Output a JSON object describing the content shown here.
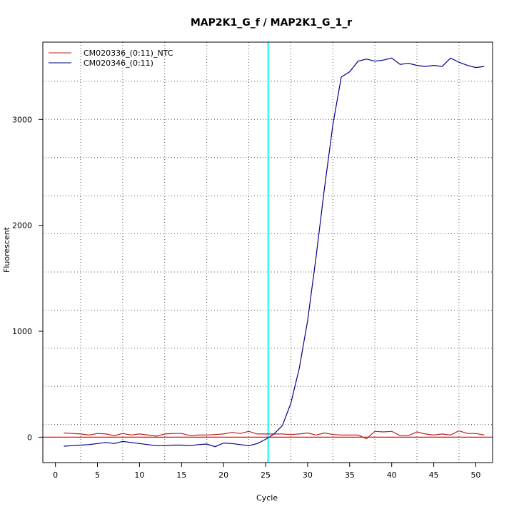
{
  "chart_data": {
    "type": "line",
    "title": "MAP2K1_G_f / MAP2K1_G_1_r",
    "xlabel": "Cycle",
    "ylabel": "Fluorescent",
    "xlim": [
      -1.5,
      52
    ],
    "ylim": [
      -240,
      3730
    ],
    "xticks": [
      0,
      5,
      10,
      15,
      20,
      25,
      30,
      35,
      40,
      45,
      50
    ],
    "yticks": [
      0,
      1000,
      2000,
      3000
    ],
    "x_grid": [
      3,
      8,
      13,
      18,
      23,
      25.3,
      28,
      33,
      38,
      43,
      48
    ],
    "y_grid": [
      0,
      120,
      480,
      840,
      1200,
      1560,
      1920,
      2280,
      2640,
      3000,
      3360
    ],
    "threshold_cycle": 25.3,
    "baseline": 0,
    "legend_position": "top-left",
    "colors": {
      "ntc": "#b22222",
      "sample": "#00008b",
      "threshold": "#00ffff",
      "baseline": "#ff0000"
    },
    "series": [
      {
        "name": "CM020336_(0:11)_NTC",
        "color": "#b22222",
        "values": [
          40,
          35,
          30,
          20,
          35,
          30,
          15,
          35,
          20,
          30,
          20,
          10,
          30,
          35,
          35,
          15,
          20,
          20,
          25,
          30,
          45,
          35,
          55,
          30,
          30,
          30,
          30,
          25,
          30,
          40,
          20,
          40,
          25,
          20,
          20,
          20,
          -15,
          55,
          50,
          55,
          15,
          15,
          50,
          30,
          20,
          30,
          20,
          60,
          35,
          35,
          20
        ]
      },
      {
        "name": "CM020346_(0:11)",
        "color": "#00008b",
        "values": [
          -85,
          -80,
          -75,
          -70,
          -60,
          -50,
          -60,
          -40,
          -50,
          -60,
          -70,
          -80,
          -80,
          -75,
          -75,
          -80,
          -70,
          -65,
          -90,
          -55,
          -60,
          -70,
          -80,
          -60,
          -20,
          30,
          110,
          320,
          650,
          1100,
          1700,
          2350,
          2950,
          3400,
          3450,
          3550,
          3570,
          3550,
          3560,
          3580,
          3520,
          3530,
          3510,
          3500,
          3510,
          3500,
          3580,
          3540,
          3510,
          3490,
          3500
        ]
      }
    ]
  }
}
